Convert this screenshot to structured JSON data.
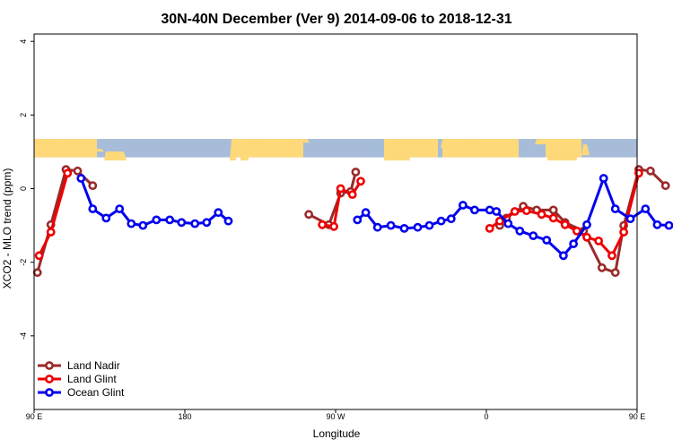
{
  "chart_data": {
    "type": "line",
    "title": "30N-40N December (Ver 9)   2014-09-06 to 2018-12-31",
    "xlabel": "Longitude",
    "ylabel": "XCO2 - MLO trend (ppm)",
    "xlim": [
      90,
      450
    ],
    "ylim": [
      -6,
      4.2
    ],
    "x_ticks": [
      {
        "value": 90,
        "label": "90 E"
      },
      {
        "value": 180,
        "label": "180"
      },
      {
        "value": 270,
        "label": "90 W"
      },
      {
        "value": 360,
        "label": "0"
      },
      {
        "value": 450,
        "label": "90 E"
      },
      {
        "value": 540,
        "label": "180"
      }
    ],
    "y_ticks": [
      {
        "value": 4,
        "label": "4"
      },
      {
        "value": 2,
        "label": "2"
      },
      {
        "value": 0,
        "label": "0"
      },
      {
        "value": -2,
        "label": "-2"
      },
      {
        "value": -4,
        "label": "-4"
      }
    ],
    "x_ticks_note": "x axis spans 90 E through 180 to 90 E (wrapping); values here are unwrapped degrees",
    "legend_position": "bottom-left",
    "grid": false,
    "land_band": {
      "y_range": [
        0.85,
        1.35
      ],
      "ocean_color": "#a7bcd9",
      "land_color": "#fdd97a"
    },
    "series": [
      {
        "name": "Land Nadir",
        "color": "#9b2a2a",
        "segments": [
          [
            [
              92,
              -2.28
            ],
            [
              100,
              -0.98
            ],
            [
              109,
              0.52
            ],
            [
              116,
              0.48
            ],
            [
              125,
              0.08
            ]
          ],
          [
            [
              254,
              -0.7
            ],
            [
              266,
              -0.98
            ],
            [
              273,
              -0.12
            ],
            [
              279,
              -0.08
            ],
            [
              282,
              0.45
            ]
          ],
          [
            [
              368,
              -1.0
            ],
            [
              372,
              -0.8
            ],
            [
              382,
              -0.48
            ],
            [
              390,
              -0.58
            ],
            [
              400,
              -0.58
            ],
            [
              407,
              -0.92
            ],
            [
              418,
              -1.15
            ],
            [
              429,
              -2.15
            ],
            [
              437,
              -2.28
            ],
            [
              442,
              -1.0
            ],
            [
              451,
              0.52
            ],
            [
              458,
              0.48
            ],
            [
              467,
              0.08
            ]
          ]
        ]
      },
      {
        "name": "Land Glint",
        "color": "#ee0000",
        "segments": [
          [
            [
              93,
              -1.82
            ],
            [
              100,
              -1.18
            ],
            [
              110,
              0.42
            ]
          ],
          [
            [
              262,
              -0.98
            ],
            [
              269,
              -1.03
            ],
            [
              273,
              0.0
            ],
            [
              280,
              -0.16
            ],
            [
              285,
              0.2
            ]
          ],
          [
            [
              362,
              -1.08
            ],
            [
              368,
              -0.88
            ],
            [
              377,
              -0.62
            ],
            [
              384,
              -0.6
            ],
            [
              393,
              -0.7
            ],
            [
              400,
              -0.8
            ],
            [
              407,
              -0.98
            ],
            [
              414,
              -1.15
            ],
            [
              420,
              -1.32
            ],
            [
              427,
              -1.42
            ],
            [
              435,
              -1.82
            ],
            [
              442,
              -1.18
            ],
            [
              451,
              0.42
            ]
          ]
        ]
      },
      {
        "name": "Ocean Glint",
        "color": "#0000ee",
        "segments": [
          [
            [
              118,
              0.28
            ],
            [
              125,
              -0.55
            ],
            [
              133,
              -0.8
            ],
            [
              141,
              -0.55
            ],
            [
              148,
              -0.95
            ],
            [
              155,
              -1.0
            ],
            [
              163,
              -0.85
            ],
            [
              171,
              -0.85
            ],
            [
              178,
              -0.92
            ],
            [
              186,
              -0.95
            ],
            [
              193,
              -0.92
            ],
            [
              200,
              -0.65
            ],
            [
              206,
              -0.88
            ]
          ],
          [
            [
              283,
              -0.85
            ],
            [
              288,
              -0.65
            ],
            [
              295,
              -1.05
            ],
            [
              303,
              -1.0
            ],
            [
              311,
              -1.08
            ],
            [
              319,
              -1.05
            ],
            [
              326,
              -1.0
            ],
            [
              333,
              -0.88
            ],
            [
              339,
              -0.82
            ],
            [
              346,
              -0.45
            ],
            [
              353,
              -0.58
            ],
            [
              362,
              -0.58
            ],
            [
              366,
              -0.62
            ],
            [
              373,
              -0.95
            ],
            [
              380,
              -1.15
            ],
            [
              388,
              -1.28
            ],
            [
              396,
              -1.4
            ],
            [
              406,
              -1.82
            ],
            [
              412,
              -1.5
            ],
            [
              420,
              -0.98
            ],
            [
              430,
              0.28
            ],
            [
              437,
              -0.55
            ],
            [
              446,
              -0.82
            ],
            [
              455,
              -0.55
            ],
            [
              462,
              -0.98
            ],
            [
              469,
              -1.0
            ]
          ]
        ]
      }
    ]
  }
}
